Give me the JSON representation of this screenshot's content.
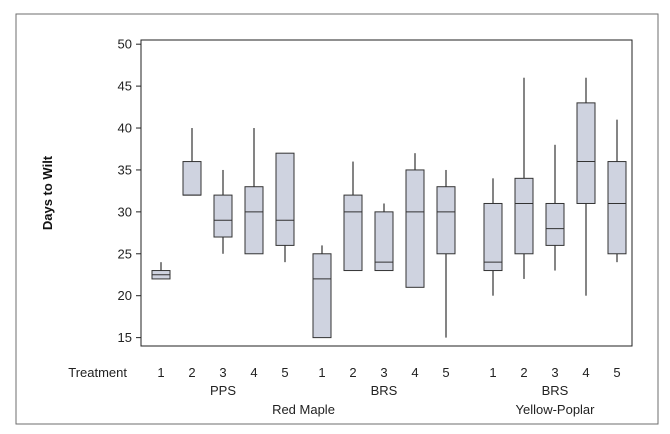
{
  "chart_data": {
    "type": "boxplot",
    "title": "",
    "ylabel": "Days to Wilt",
    "ylim": [
      14,
      50.5
    ],
    "yticks": [
      15,
      20,
      25,
      30,
      35,
      40,
      45,
      50
    ],
    "grid": false,
    "row_label": "Treatment",
    "treatments": [
      "1",
      "2",
      "3",
      "4",
      "5"
    ],
    "subgroups": [
      {
        "label": "PPS",
        "species": "Red Maple"
      },
      {
        "label": "BRS",
        "species": "Red Maple"
      },
      {
        "label": "BRS",
        "species": "Yellow-Poplar"
      }
    ],
    "species_labels": [
      "Red Maple",
      "Yellow-Poplar"
    ],
    "boxes": [
      {
        "group": 0,
        "treatment": "1",
        "whisker_low": 22,
        "q1": 22,
        "median": 22.5,
        "q3": 23,
        "whisker_high": 24
      },
      {
        "group": 0,
        "treatment": "2",
        "whisker_low": 32,
        "q1": 32,
        "median": 32,
        "q3": 36,
        "whisker_high": 40
      },
      {
        "group": 0,
        "treatment": "3",
        "whisker_low": 25,
        "q1": 27,
        "median": 29,
        "q3": 32,
        "whisker_high": 35
      },
      {
        "group": 0,
        "treatment": "4",
        "whisker_low": 25,
        "q1": 25,
        "median": 30,
        "q3": 33,
        "whisker_high": 40
      },
      {
        "group": 0,
        "treatment": "5",
        "whisker_low": 24,
        "q1": 26,
        "median": 29,
        "q3": 37,
        "whisker_high": 37
      },
      {
        "group": 1,
        "treatment": "1",
        "whisker_low": 15,
        "q1": 15,
        "median": 22,
        "q3": 25,
        "whisker_high": 26
      },
      {
        "group": 1,
        "treatment": "2",
        "whisker_low": 23,
        "q1": 23,
        "median": 30,
        "q3": 32,
        "whisker_high": 36
      },
      {
        "group": 1,
        "treatment": "3",
        "whisker_low": 23,
        "q1": 23,
        "median": 24,
        "q3": 30,
        "whisker_high": 31
      },
      {
        "group": 1,
        "treatment": "4",
        "whisker_low": 21,
        "q1": 21,
        "median": 30,
        "q3": 35,
        "whisker_high": 37
      },
      {
        "group": 1,
        "treatment": "5",
        "whisker_low": 15,
        "q1": 25,
        "median": 30,
        "q3": 33,
        "whisker_high": 35
      },
      {
        "group": 2,
        "treatment": "1",
        "whisker_low": 20,
        "q1": 23,
        "median": 24,
        "q3": 31,
        "whisker_high": 34
      },
      {
        "group": 2,
        "treatment": "2",
        "whisker_low": 22,
        "q1": 25,
        "median": 31,
        "q3": 34,
        "whisker_high": 46
      },
      {
        "group": 2,
        "treatment": "3",
        "whisker_low": 23,
        "q1": 26,
        "median": 28,
        "q3": 31,
        "whisker_high": 38
      },
      {
        "group": 2,
        "treatment": "4",
        "whisker_low": 20,
        "q1": 31,
        "median": 36,
        "q3": 43,
        "whisker_high": 46
      },
      {
        "group": 2,
        "treatment": "5",
        "whisker_low": 24,
        "q1": 25,
        "median": 31,
        "q3": 36,
        "whisker_high": 41
      }
    ],
    "colors": {
      "box_fill": "#cfd3e0",
      "box_stroke": "#333333",
      "axis": "#222222",
      "frame": "#6e6e6e"
    }
  }
}
